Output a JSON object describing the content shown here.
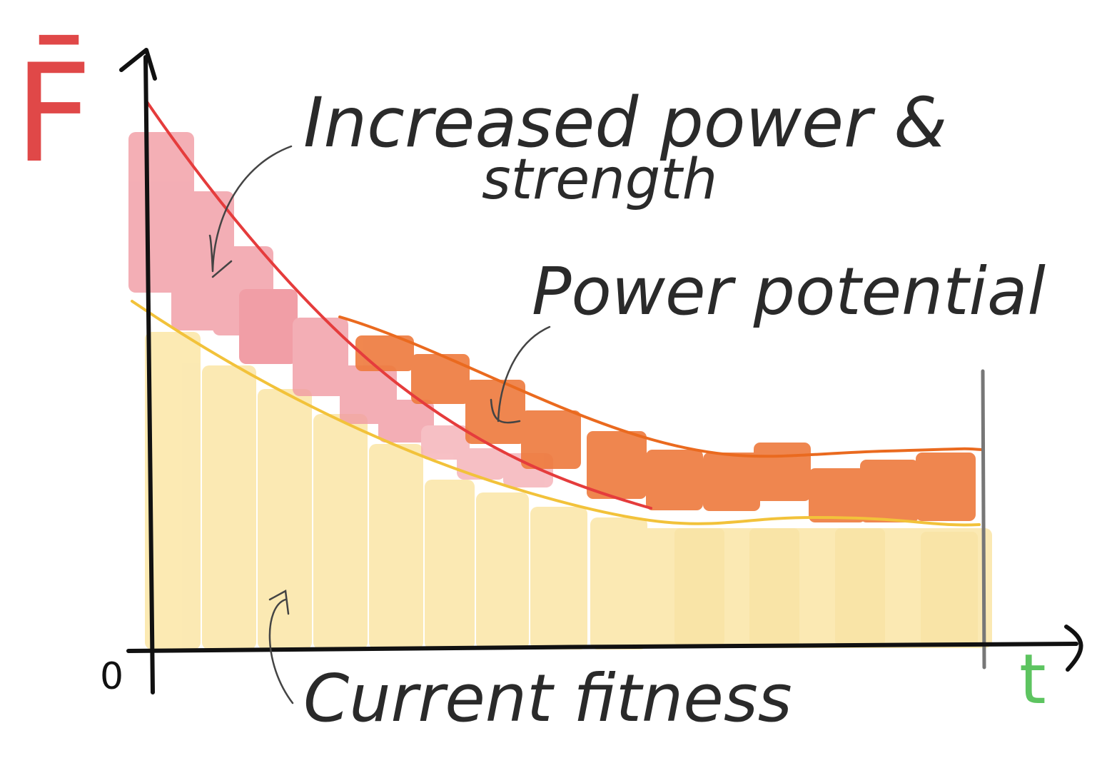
{
  "diagram": {
    "labels": {
      "y_axis": "F̄",
      "x_axis": "t",
      "origin": "0",
      "strength_line1": "Increased power &",
      "strength_line2": "strength",
      "power_potential": "Power potential",
      "current_fitness": "Current fitness"
    },
    "colors": {
      "axis": "#111111",
      "strength": "#e53c3c",
      "strength_fill": "#f19ba3",
      "power": "#ea6a1f",
      "power_fill": "#ee7a3c",
      "fitness": "#f2c23a",
      "fitness_fill": "#fbe6a6",
      "y_label": "#e04848",
      "x_label": "#5dc460",
      "end_marker": "#777777"
    }
  }
}
